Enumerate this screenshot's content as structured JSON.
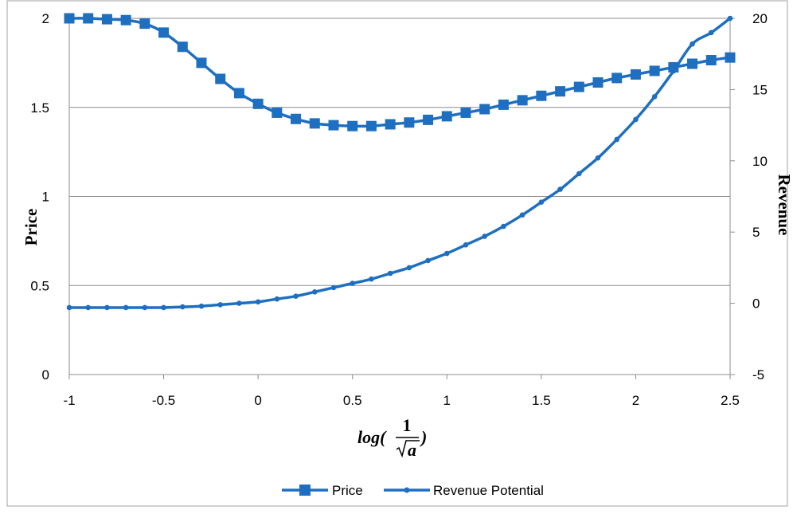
{
  "chart_data": {
    "type": "line",
    "xlabel": {
      "prefix": "log(",
      "numerator": "1",
      "radicand": "a",
      "suffix": ")"
    },
    "ylabel": "Price",
    "y2label": "Revenue",
    "xlim": [
      -1,
      2.5
    ],
    "ylim": [
      0,
      2
    ],
    "y2lim": [
      -5,
      20
    ],
    "x_ticks": [
      "-1",
      "-0.5",
      "0",
      "0.5",
      "1",
      "1.5",
      "2",
      "2.5"
    ],
    "y_ticks": [
      "0",
      "0.5",
      "1",
      "1.5",
      "2"
    ],
    "y2_ticks": [
      "-5",
      "0",
      "5",
      "10",
      "15",
      "20"
    ],
    "grid": "horizontal",
    "legend_position": "bottom",
    "color": "#1f6fc0",
    "x": [
      -1,
      -0.9,
      -0.8,
      -0.7,
      -0.6,
      -0.5,
      -0.4,
      -0.3,
      -0.2,
      -0.1,
      0,
      0.1,
      0.2,
      0.3,
      0.4,
      0.5,
      0.6,
      0.7,
      0.8,
      0.9,
      1,
      1.1,
      1.2,
      1.3,
      1.4,
      1.5,
      1.6,
      1.7,
      1.8,
      1.9,
      2,
      2.1,
      2.2,
      2.3,
      2.4,
      2.5
    ],
    "series": [
      {
        "name": "Price",
        "axis": "left",
        "marker": "square",
        "values": [
          2.0,
          2.0,
          1.995,
          1.99,
          1.97,
          1.92,
          1.84,
          1.75,
          1.66,
          1.58,
          1.52,
          1.47,
          1.435,
          1.41,
          1.4,
          1.395,
          1.395,
          1.405,
          1.415,
          1.43,
          1.45,
          1.47,
          1.49,
          1.515,
          1.54,
          1.565,
          1.59,
          1.615,
          1.64,
          1.665,
          1.685,
          1.705,
          1.725,
          1.745,
          1.765,
          1.78
        ]
      },
      {
        "name": "Revenue Potential",
        "axis": "right",
        "marker": "circle",
        "values": [
          -0.3,
          -0.3,
          -0.3,
          -0.3,
          -0.3,
          -0.3,
          -0.25,
          -0.2,
          -0.1,
          0,
          0.1,
          0.3,
          0.5,
          0.8,
          1.1,
          1.4,
          1.7,
          2.1,
          2.5,
          3.0,
          3.5,
          4.1,
          4.7,
          5.4,
          6.2,
          7.1,
          8.0,
          9.1,
          10.2,
          11.5,
          12.9,
          14.5,
          16.3,
          18.2,
          19.0,
          20.0
        ]
      }
    ]
  }
}
